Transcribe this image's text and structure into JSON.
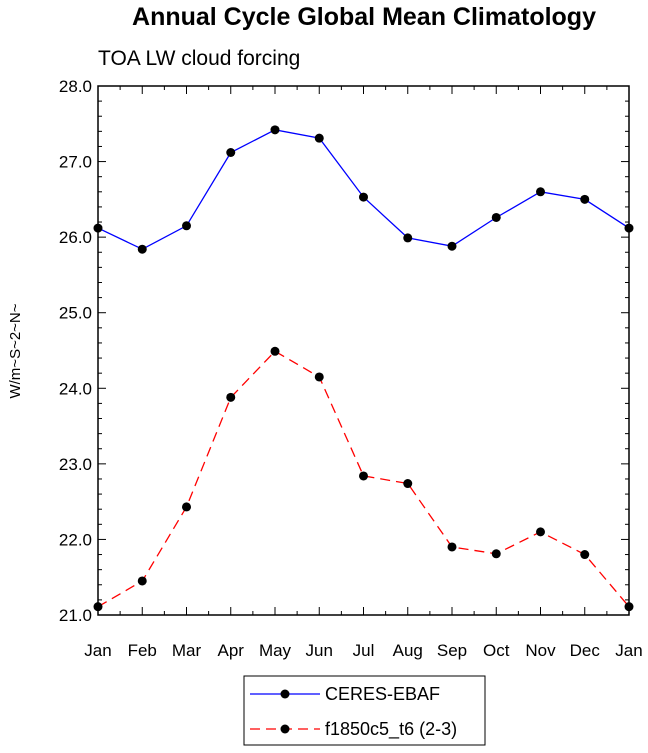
{
  "chart_data": {
    "type": "line",
    "title": "Annual Cycle Global Mean Climatology",
    "subtitle": "TOA LW cloud forcing",
    "ylabel": "W/m~S~2~N~",
    "xlabel": "",
    "categories": [
      "Jan",
      "Feb",
      "Mar",
      "Apr",
      "May",
      "Jun",
      "Jul",
      "Aug",
      "Sep",
      "Oct",
      "Nov",
      "Dec",
      "Jan"
    ],
    "ylim": [
      21.0,
      28.0
    ],
    "yticks": [
      "21.0",
      "22.0",
      "23.0",
      "24.0",
      "25.0",
      "26.0",
      "27.0",
      "28.0"
    ],
    "grid": false,
    "legend_position": "bottom-center",
    "series": [
      {
        "name": "CERES-EBAF",
        "color": "#0000ff",
        "dash": "solid",
        "values": [
          26.12,
          25.84,
          26.15,
          27.12,
          27.42,
          27.31,
          26.53,
          25.99,
          25.88,
          26.26,
          26.6,
          26.5,
          26.12
        ]
      },
      {
        "name": "f1850c5_t6 (2-3)",
        "color": "#ff0000",
        "dash": "dashed",
        "values": [
          21.11,
          21.45,
          22.43,
          23.88,
          24.49,
          24.15,
          22.84,
          22.74,
          21.9,
          21.81,
          22.1,
          21.8,
          21.11
        ]
      }
    ]
  }
}
